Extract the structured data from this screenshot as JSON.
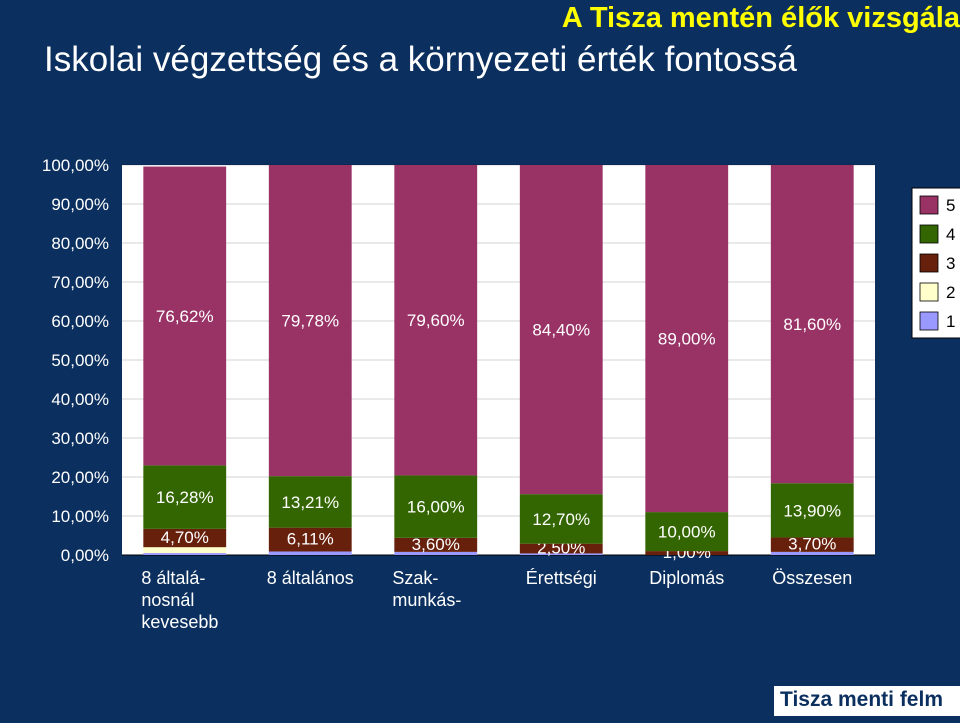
{
  "header": {
    "title_top": "A Tisza mentén élők vizsgála",
    "title_main": "Iskolai végzettség és a környezeti érték fontossá"
  },
  "footer": {
    "text": "Tisza menti felm"
  },
  "colors": {
    "background": "#0b2f5e",
    "plot_area": "#ffffff",
    "series_5": "#993366",
    "series_4": "#336600",
    "series_3": "#66200c",
    "series_2": "#ffffcc",
    "series_1": "#9999ff"
  },
  "chart_data": {
    "type": "bar",
    "stacked": true,
    "categories": [
      [
        "8 általá-",
        "nosnál",
        "kevesebb"
      ],
      [
        "8 általános"
      ],
      [
        "Szak-",
        "munkás-"
      ],
      [
        "Érettségi"
      ],
      [
        "Diplomás"
      ],
      [
        "Összesen"
      ]
    ],
    "series": [
      {
        "name": "1",
        "color": "#9999ff",
        "values": [
          0.5,
          0.9,
          0.8,
          0.4,
          0.0,
          0.8
        ],
        "labels": [
          "",
          "",
          "",
          "",
          "",
          ""
        ]
      },
      {
        "name": "2",
        "color": "#ffffcc",
        "values": [
          1.5,
          0.0,
          0.0,
          0.0,
          0.0,
          0.0
        ],
        "labels": [
          "",
          "",
          "",
          "",
          "",
          ""
        ]
      },
      {
        "name": "3",
        "color": "#66200c",
        "values": [
          4.7,
          6.11,
          3.6,
          2.5,
          1.0,
          3.7
        ],
        "labels": [
          "4,70%",
          "6,11%",
          "3,60%",
          "2,50%",
          "1,00%",
          "3,70%"
        ]
      },
      {
        "name": "4",
        "color": "#336600",
        "values": [
          16.28,
          13.21,
          16.0,
          12.7,
          10.0,
          13.9
        ],
        "labels": [
          "16,28%",
          "13,21%",
          "16,00%",
          "12,70%",
          "10,00%",
          "13,90%"
        ]
      },
      {
        "name": "5",
        "color": "#993366",
        "values": [
          76.62,
          79.78,
          79.6,
          84.4,
          89.0,
          81.6
        ],
        "labels": [
          "76,62%",
          "79,78%",
          "79,60%",
          "84,40%",
          "89,00%",
          "81,60%"
        ]
      }
    ],
    "yticks": [
      "0,00%",
      "10,00%",
      "20,00%",
      "30,00%",
      "40,00%",
      "50,00%",
      "60,00%",
      "70,00%",
      "80,00%",
      "90,00%",
      "100,00%"
    ],
    "ylim": [
      0,
      100
    ],
    "legend": {
      "position": "right",
      "entries": [
        "5",
        "4",
        "3",
        "2",
        "1"
      ]
    }
  }
}
